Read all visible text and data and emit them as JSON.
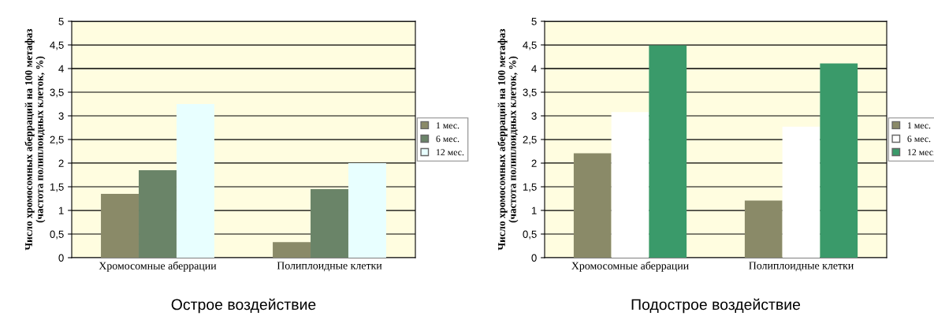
{
  "chart_data": [
    {
      "type": "bar",
      "title": "Острое воздействие",
      "ylabel": "Число хромосомных аберраций на 100 метафаз\n(частота полиплоидных клеток, %)",
      "categories": [
        "Хромосомные аберрации",
        "Полиплоидные клетки"
      ],
      "series": [
        {
          "name": "1 мес.",
          "color": "#8a8a68",
          "values": [
            1.35,
            0.33
          ]
        },
        {
          "name": "6 мес.",
          "color": "#6a8468",
          "values": [
            1.85,
            1.45
          ]
        },
        {
          "name": "12 мес.",
          "color": "#e8ffff",
          "values": [
            3.25,
            2.0
          ]
        }
      ],
      "ylim": [
        0,
        5
      ],
      "yticks": [
        0,
        {
          "value": 0.5,
          "label": "0,5"
        },
        1,
        {
          "value": 1.5,
          "label": "1,5"
        },
        2,
        {
          "value": 2.5,
          "label": "2,5"
        },
        3,
        {
          "value": 3.5,
          "label": "3,5"
        },
        4,
        {
          "value": 4.5,
          "label": "4,5"
        },
        5
      ],
      "grid": "y",
      "legend": "right"
    },
    {
      "type": "bar",
      "title": "Подострое воздействие",
      "ylabel": "Число хромосомных аберраций на 100 метафаз\n(частота полиплоидных клеток, %)",
      "categories": [
        "Хромосомные аберрации",
        "Полиплоидные клетки"
      ],
      "series": [
        {
          "name": "1 мес.",
          "color": "#8a8a68",
          "values": [
            2.21,
            1.21
          ]
        },
        {
          "name": "6 мес.",
          "color": "#ffffff",
          "values": [
            3.08,
            2.77
          ]
        },
        {
          "name": "12 мес.",
          "color": "#3a9a6a",
          "values": [
            4.49,
            4.11
          ]
        }
      ],
      "ylim": [
        0,
        5
      ],
      "yticks": [
        0,
        {
          "value": 0.5,
          "label": "0,5"
        },
        1,
        {
          "value": 1.5,
          "label": "1,5"
        },
        2,
        {
          "value": 2.5,
          "label": "2,5"
        },
        3,
        {
          "value": 3.5,
          "label": "3,5"
        },
        4,
        {
          "value": 4.5,
          "label": "4,5"
        },
        5
      ],
      "grid": "y",
      "legend": "right"
    }
  ]
}
